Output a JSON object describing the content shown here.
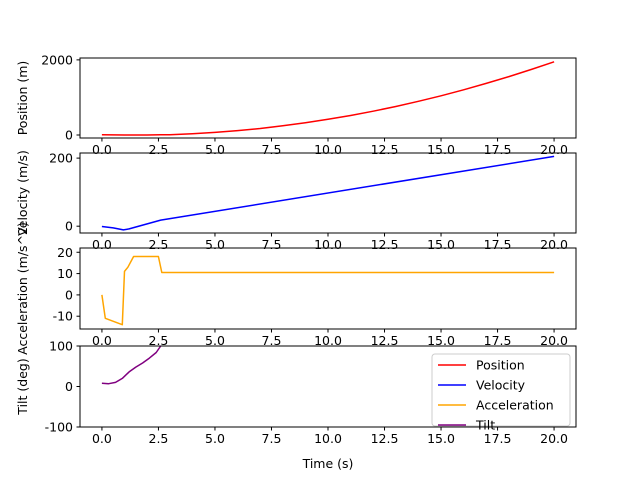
{
  "chart_data": [
    {
      "type": "line",
      "ylabel": "Position (m)",
      "xlim": [
        -0.97,
        20.97
      ],
      "ylim": [
        -80,
        2050
      ],
      "yticks": [
        0,
        2000
      ],
      "xticks": [
        0,
        2.5,
        5,
        7.5,
        10,
        12.5,
        15,
        17.5,
        20
      ],
      "xticklabels": [
        "0.0",
        "2.5",
        "5.0",
        "7.5",
        "10.0",
        "12.5",
        "15.0",
        "17.5",
        "20.0"
      ],
      "grid": false,
      "series": [
        {
          "name": "Position",
          "color": "#ff0000",
          "x": [
            0,
            1,
            2,
            2.6,
            3,
            4,
            5,
            6,
            7,
            8,
            9,
            10,
            11,
            12,
            13,
            14,
            15,
            16,
            17,
            18,
            19,
            20
          ],
          "y": [
            4,
            0,
            -1,
            4,
            9,
            33,
            69,
            116,
            174,
            244,
            325,
            417,
            520,
            634,
            760,
            896,
            1044,
            1203,
            1373,
            1554,
            1746,
            1950
          ]
        }
      ]
    },
    {
      "type": "line",
      "ylabel": "Velocity (m/s)",
      "xlim": [
        -0.97,
        20.97
      ],
      "ylim": [
        -20,
        215
      ],
      "yticks": [
        0,
        200
      ],
      "xticks": [
        0,
        2.5,
        5,
        7.5,
        10,
        12.5,
        15,
        17.5,
        20
      ],
      "xticklabels": [
        "0.0",
        "2.5",
        "5.0",
        "7.5",
        "10.0",
        "12.5",
        "15.0",
        "17.5",
        "20.0"
      ],
      "grid": false,
      "series": [
        {
          "name": "Velocity",
          "color": "#0000ff",
          "x": [
            0,
            0.5,
            0.95,
            1.2,
            1.4,
            2.6,
            20
          ],
          "y": [
            -1,
            -5,
            -11,
            -8,
            -4,
            18,
            205
          ]
        }
      ]
    },
    {
      "type": "line",
      "ylabel": "Acceleration (m/s^2)",
      "xlim": [
        -0.97,
        20.97
      ],
      "ylim": [
        -16,
        22
      ],
      "yticks": [
        -10,
        0,
        10,
        20
      ],
      "xticks": [
        0,
        2.5,
        5,
        7.5,
        10,
        12.5,
        15,
        17.5,
        20
      ],
      "xticklabels": [
        "0.0",
        "2.5",
        "5.0",
        "7.5",
        "10.0",
        "12.5",
        "15.0",
        "17.5",
        "20.0"
      ],
      "grid": false,
      "series": [
        {
          "name": "Acceleration",
          "color": "#ffa500",
          "x": [
            0,
            0.15,
            0.9,
            1.0,
            1.15,
            1.4,
            2.5,
            2.65,
            20
          ],
          "y": [
            0,
            -11,
            -14,
            11,
            13,
            18,
            18,
            10.5,
            10.5
          ]
        }
      ]
    },
    {
      "type": "line",
      "ylabel": "Tilt (deg)",
      "xlabel": "Time (s)",
      "xlim": [
        -0.97,
        20.97
      ],
      "ylim": [
        -100,
        100
      ],
      "yticks": [
        -100,
        0,
        100
      ],
      "xticks": [
        0,
        2.5,
        5,
        7.5,
        10,
        12.5,
        15,
        17.5,
        20
      ],
      "xticklabels": [
        "0.0",
        "2.5",
        "5.0",
        "7.5",
        "10.0",
        "12.5",
        "15.0",
        "17.5",
        "20.0"
      ],
      "grid": false,
      "legend": "top-right",
      "series": [
        {
          "name": "Tilt",
          "color": "#800080",
          "x": [
            0,
            0.3,
            0.6,
            0.9,
            1.2,
            1.5,
            1.8,
            2.1,
            2.4,
            2.6
          ],
          "y": [
            8,
            7,
            10,
            20,
            36,
            48,
            58,
            70,
            84,
            100
          ]
        }
      ]
    }
  ],
  "legend": {
    "items": [
      {
        "label": "Position",
        "color": "#ff0000"
      },
      {
        "label": "Velocity",
        "color": "#0000ff"
      },
      {
        "label": "Acceleration",
        "color": "#ffa500"
      },
      {
        "label": "Tilt",
        "color": "#800080"
      }
    ]
  }
}
